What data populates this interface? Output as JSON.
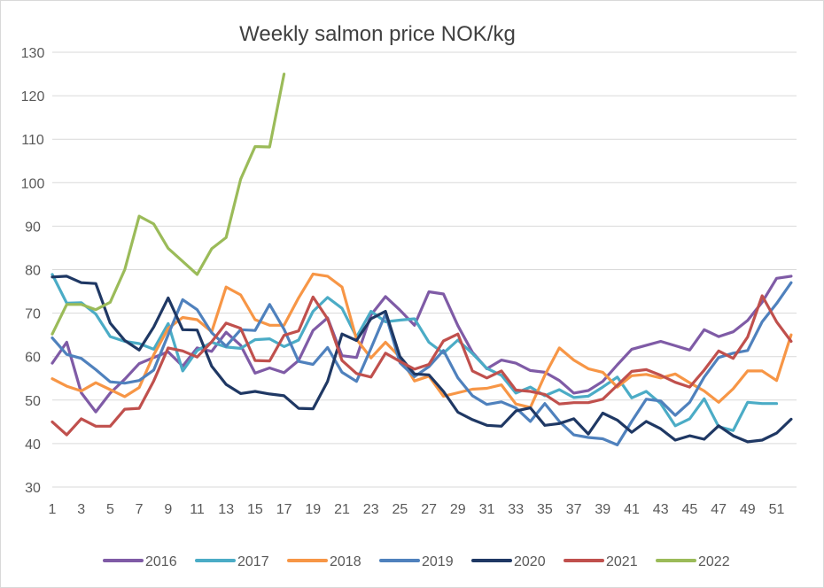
{
  "chart_data": {
    "type": "line",
    "title": "Weekly salmon price NOK/kg",
    "xlabel": "",
    "ylabel": "",
    "x_ticks": [
      1,
      3,
      5,
      7,
      9,
      11,
      13,
      15,
      17,
      19,
      21,
      23,
      25,
      27,
      29,
      31,
      33,
      35,
      37,
      39,
      41,
      43,
      45,
      47,
      49,
      51
    ],
    "y_ticks": [
      30,
      40,
      50,
      60,
      70,
      80,
      90,
      100,
      110,
      120,
      130
    ],
    "xlim": [
      1,
      52
    ],
    "ylim": [
      30,
      130
    ],
    "grid": "horizontal",
    "legend": "bottom",
    "series": [
      {
        "name": "2016",
        "color": "#7F5BA6",
        "values": [
          58.5,
          63.3,
          51.7,
          47.3,
          51.6,
          54.8,
          58.4,
          59.8,
          61.1,
          57.8,
          62.0,
          61.2,
          65.6,
          62.6,
          56.2,
          57.4,
          56.3,
          59.1,
          66.0,
          68.9,
          60.2,
          59.8,
          69.6,
          73.8,
          70.7,
          67.2,
          74.9,
          74.4,
          67.1,
          61.0,
          57.2,
          59.2,
          58.5,
          56.8,
          56.4,
          54.5,
          51.6,
          52.2,
          54.3,
          58.1,
          61.7,
          62.6,
          63.5,
          62.5,
          61.5,
          66.2,
          64.6,
          65.7,
          68.3,
          72.5,
          78.0,
          78.5
        ]
      },
      {
        "name": "2017",
        "color": "#4BACC6",
        "values": [
          78.9,
          72.3,
          72.4,
          69.8,
          64.6,
          63.5,
          63.0,
          61.7,
          67.6,
          56.7,
          61.4,
          63.3,
          62.2,
          61.9,
          63.9,
          64.1,
          62.3,
          63.8,
          70.4,
          73.6,
          71.1,
          64.5,
          70.4,
          68.0,
          68.4,
          68.7,
          63.3,
          60.8,
          63.8,
          60.7,
          57.3,
          55.7,
          51.6,
          53.0,
          51.0,
          52.4,
          50.6,
          50.9,
          53.0,
          55.3,
          50.5,
          52.0,
          49.2,
          44.1,
          45.7,
          50.3,
          43.9,
          43.0,
          49.5,
          49.2,
          49.2
        ]
      },
      {
        "name": "2018",
        "color": "#F79646",
        "values": [
          54.9,
          53.2,
          52.1,
          54.0,
          52.4,
          50.8,
          52.9,
          60.4,
          66.5,
          69.0,
          68.5,
          65.7,
          76.0,
          74.2,
          68.5,
          67.2,
          67.2,
          73.5,
          79.0,
          78.5,
          76.0,
          64.0,
          59.7,
          63.3,
          59.9,
          54.4,
          55.5,
          50.9,
          51.7,
          52.5,
          52.7,
          53.5,
          49.1,
          48.3,
          55.7,
          62.0,
          59.2,
          57.2,
          56.4,
          53.0,
          55.6,
          55.9,
          55.1,
          56.0,
          54.0,
          52.1,
          49.5,
          52.6,
          56.7,
          56.7,
          54.5,
          65.0
        ]
      },
      {
        "name": "2019",
        "color": "#4F81BD",
        "values": [
          64.3,
          60.5,
          59.6,
          57.0,
          54.2,
          53.9,
          54.5,
          56.9,
          65.0,
          73.1,
          70.8,
          65.5,
          62.4,
          66.2,
          66.0,
          72.0,
          66.3,
          58.9,
          58.2,
          62.1,
          56.4,
          54.3,
          61.9,
          69.8,
          58.6,
          55.4,
          57.7,
          61.4,
          55.1,
          51.0,
          49.0,
          49.6,
          48.2,
          45.1,
          49.2,
          45.1,
          42.0,
          41.4,
          41.1,
          39.7,
          45.1,
          50.2,
          49.8,
          46.5,
          49.5,
          55.3,
          59.8,
          60.8,
          61.4,
          68.0,
          72.2,
          77.0
        ]
      },
      {
        "name": "2020",
        "color": "#1F3864",
        "values": [
          78.3,
          78.5,
          77.0,
          76.8,
          67.7,
          63.7,
          61.5,
          66.8,
          73.5,
          66.2,
          66.1,
          57.8,
          53.6,
          51.5,
          52.0,
          51.4,
          51.0,
          48.1,
          48.0,
          54.3,
          65.2,
          63.7,
          68.7,
          70.4,
          60.0,
          56.0,
          55.8,
          52.0,
          47.2,
          45.5,
          44.2,
          44.0,
          47.5,
          48.2,
          44.2,
          44.6,
          45.7,
          42.2,
          47.0,
          45.4,
          42.6,
          45.1,
          43.4,
          40.8,
          41.8,
          41.0,
          44.1,
          41.8,
          40.4,
          40.8,
          42.4,
          45.6
        ]
      },
      {
        "name": "2021",
        "color": "#C0504D",
        "values": [
          45.0,
          42.0,
          45.7,
          44.0,
          44.0,
          47.9,
          48.1,
          54.4,
          62.0,
          61.3,
          59.9,
          63.4,
          67.7,
          66.5,
          59.1,
          59.0,
          64.9,
          65.9,
          73.7,
          68.7,
          59.1,
          56.1,
          55.3,
          60.8,
          58.9,
          57.1,
          58.2,
          63.6,
          65.2,
          56.7,
          55.1,
          56.7,
          52.3,
          52.0,
          51.3,
          49.1,
          49.4,
          49.4,
          50.2,
          53.4,
          56.6,
          57.0,
          55.7,
          54.1,
          53.0,
          56.9,
          61.3,
          59.6,
          64.5,
          74.0,
          68.0,
          63.5
        ]
      },
      {
        "name": "2022",
        "color": "#9BBB59",
        "values": [
          65.2,
          72.0,
          72.0,
          70.8,
          72.5,
          80.0,
          92.3,
          90.5,
          84.9,
          81.9,
          78.9,
          84.8,
          87.4,
          100.8,
          108.3,
          108.2,
          125.0
        ]
      }
    ]
  }
}
